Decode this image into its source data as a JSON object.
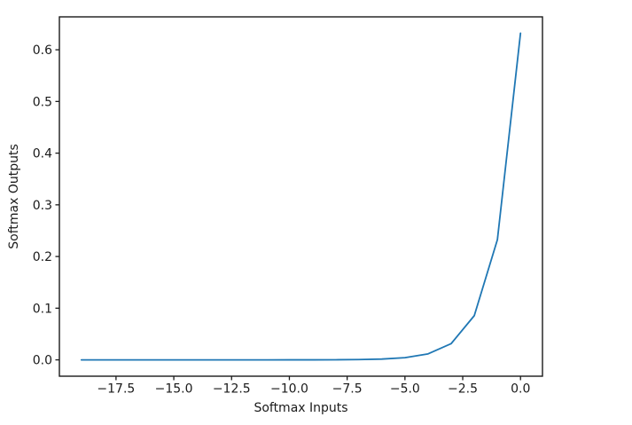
{
  "chart_data": {
    "type": "line",
    "title": "",
    "xlabel": "Softmax Inputs",
    "ylabel": "Softmax Outputs",
    "x": [
      -19,
      -18,
      -17,
      -16,
      -15,
      -14,
      -13,
      -12,
      -11,
      -10,
      -9,
      -8,
      -7,
      -6,
      -5,
      -4,
      -3,
      -2,
      -1,
      0
    ],
    "y": [
      3.6e-09,
      9.6e-09,
      2.61e-08,
      7.1e-08,
      1.93e-07,
      5.25e-07,
      1.43e-06,
      3.88e-06,
      1.06e-05,
      2.87e-05,
      7.8e-05,
      0.000212,
      0.000576,
      0.001567,
      0.004259,
      0.011578,
      0.031471,
      0.085548,
      0.232544,
      0.632121
    ],
    "xlim": [
      -19.95,
      0.95
    ],
    "ylim": [
      -0.0316,
      0.6637
    ],
    "xticks": [
      -17.5,
      -15.0,
      -12.5,
      -10.0,
      -7.5,
      -5.0,
      -2.5,
      0.0
    ],
    "yticks": [
      0.0,
      0.1,
      0.2,
      0.3,
      0.4,
      0.5,
      0.6
    ],
    "tick_decimals": 1,
    "line_color": "#1f77b4",
    "axis_color": "#1a1a1a",
    "background_color": "#ffffff",
    "grid": false,
    "legend_position": "none"
  }
}
